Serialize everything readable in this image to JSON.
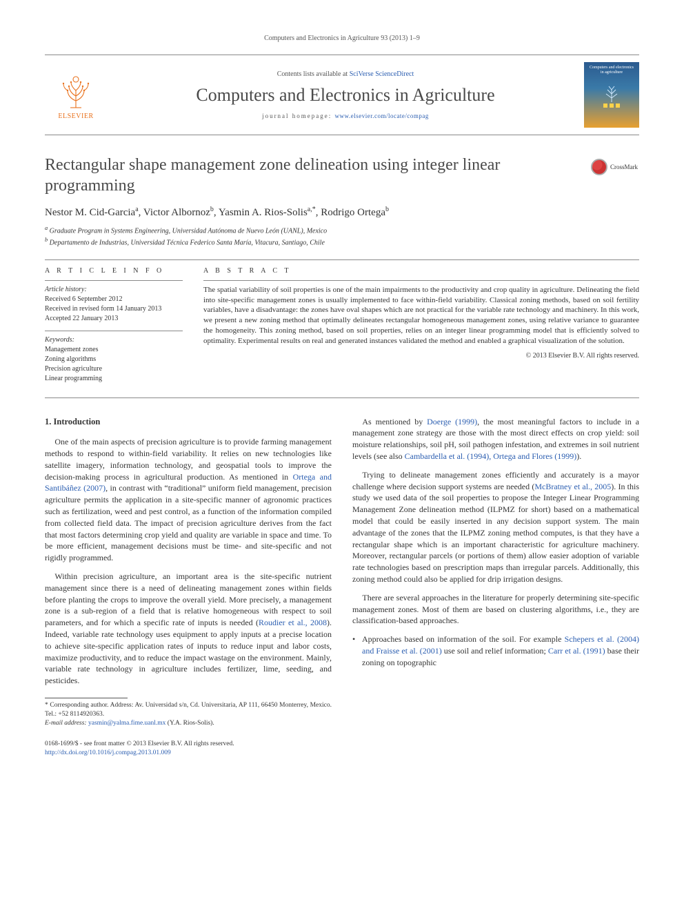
{
  "colors": {
    "link": "#2a5db0",
    "text": "#333333",
    "elsevier_orange": "#e9711c",
    "rule": "#888888",
    "cover_top": "#2b5a8f",
    "cover_mid": "#3a7aa8",
    "cover_bot": "#e8a030"
  },
  "typography": {
    "body_font": "Georgia, 'Times New Roman', serif",
    "body_size_pt": 9,
    "title_size_pt": 18,
    "journal_name_size_pt": 20
  },
  "running_head": "Computers and Electronics in Agriculture 93 (2013) 1–9",
  "masthead": {
    "publisher_label": "ELSEVIER",
    "contents_prefix": "Contents lists available at ",
    "contents_link": "SciVerse ScienceDirect",
    "journal_name": "Computers and Electronics in Agriculture",
    "homepage_prefix": "journal homepage: ",
    "homepage_url": "www.elsevier.com/locate/compag",
    "cover_caption": "Computers and electronics in agriculture"
  },
  "crossmark_label": "CrossMark",
  "article": {
    "title": "Rectangular shape management zone delineation using integer linear programming",
    "authors_html": [
      {
        "name": "Nestor M. Cid-Garcia",
        "aff": "a"
      },
      {
        "name": "Victor Albornoz",
        "aff": "b"
      },
      {
        "name": "Yasmin A. Rios-Solis",
        "aff": "a,*"
      },
      {
        "name": "Rodrigo Ortega",
        "aff": "b"
      }
    ],
    "affiliations": [
      {
        "key": "a",
        "text": "Graduate Program in Systems Engineering, Universidad Autónoma de Nuevo León (UANL), Mexico"
      },
      {
        "key": "b",
        "text": "Departamento de Industrias, Universidad Técnica Federico Santa María, Vitacura, Santiago, Chile"
      }
    ]
  },
  "article_info": {
    "head": "A R T I C L E   I N F O",
    "history_label": "Article history:",
    "history": [
      "Received 6 September 2012",
      "Received in revised form 14 January 2013",
      "Accepted 22 January 2013"
    ],
    "keywords_label": "Keywords:",
    "keywords": [
      "Management zones",
      "Zoning algorithms",
      "Precision agriculture",
      "Linear programming"
    ]
  },
  "abstract": {
    "head": "A B S T R A C T",
    "text": "The spatial variability of soil properties is one of the main impairments to the productivity and crop quality in agriculture. Delineating the field into site-specific management zones is usually implemented to face within-field variability. Classical zoning methods, based on soil fertility variables, have a disadvantage: the zones have oval shapes which are not practical for the variable rate technology and machinery. In this work, we present a new zoning method that optimally delineates rectangular homogeneous management zones, using relative variance to guarantee the homogeneity. This zoning method, based on soil properties, relies on an integer linear programming model that is efficiently solved to optimality. Experimental results on real and generated instances validated the method and enabled a graphical visualization of the solution.",
    "copyright": "© 2013 Elsevier B.V. All rights reserved."
  },
  "body": {
    "section_heading": "1. Introduction",
    "paragraphs": [
      "One of the main aspects of precision agriculture is to provide farming management methods to respond to within-field variability. It relies on new technologies like satellite imagery, information technology, and geospatial tools to improve the decision-making process in agricultural production. As mentioned in <span class=\"ref\">Ortega and Santibáñez (2007)</span>, in contrast with “traditional” uniform field management, precision agriculture permits the application in a site-specific manner of agronomic practices such as fertilization, weed and pest control, as a function of the information compiled from collected field data. The impact of precision agriculture derives from the fact that most factors determining crop yield and quality are variable in space and time. To be more efficient, management decisions must be time- and site-specific and not rigidly programmed.",
      "Within precision agriculture, an important area is the site-specific nutrient management since there is a need of delineating management zones within fields before planting the crops to improve the overall yield. More precisely, a management zone is a sub-region of a field that is relative homogeneous with respect to soil parameters, and for which a specific rate of inputs is needed (<span class=\"ref\">Roudier et al., 2008</span>). Indeed, variable rate technology uses equipment to apply inputs at a precise location to achieve site-specific application rates of inputs to reduce input and labor costs, maximize productivity, and to reduce the impact wastage on the environment. Mainly, variable rate technology in agriculture includes fertilizer, lime, seeding, and pesticides.",
      "As mentioned by <span class=\"ref\">Doerge (1999)</span>, the most meaningful factors to include in a management zone strategy are those with the most direct effects on crop yield: soil moisture relationships, soil pH, soil pathogen infestation, and extremes in soil nutrient levels (see also <span class=\"ref\">Cambardella et al. (1994), Ortega and Flores (1999)</span>).",
      "Trying to delineate management zones efficiently and accurately is a mayor challenge where decision support systems are needed (<span class=\"ref\">McBratney et al., 2005</span>). In this study we used data of the soil properties to propose the Integer Linear Programming Management Zone delineation method (ILPMZ for short) based on a mathematical model that could be easily inserted in any decision support system. The main advantage of the zones that the ILPMZ zoning method computes, is that they have a rectangular shape which is an important characteristic for agriculture machinery. Moreover, rectangular parcels (or portions of them) allow easier adoption of variable rate technologies based on prescription maps than irregular parcels. Additionally, this zoning method could also be applied for drip irrigation designs.",
      "There are several approaches in the literature for properly determining site-specific management zones. Most of them are based on clustering algorithms, i.e., they are classification-based approaches."
    ],
    "bullet": "Approaches based on information of the soil. For example <span class=\"ref\">Schepers et al. (2004) and Fraisse et al. (2001)</span> use soil and relief information; <span class=\"ref\">Carr et al. (1991)</span> base their zoning on topographic"
  },
  "footnotes": {
    "corr_marker": "*",
    "corr_text": "Corresponding author. Address: Av. Universidad s/n, Cd. Universitaria, AP 111, 66450 Monterrey, Mexico. Tel.: +52 8114920363.",
    "email_label": "E-mail address:",
    "email": "yasmin@yalma.fime.uanl.mx",
    "email_person": "(Y.A. Rios-Solis)."
  },
  "footer": {
    "issn_line": "0168-1699/$ - see front matter © 2013 Elsevier B.V. All rights reserved.",
    "doi": "http://dx.doi.org/10.1016/j.compag.2013.01.009"
  }
}
